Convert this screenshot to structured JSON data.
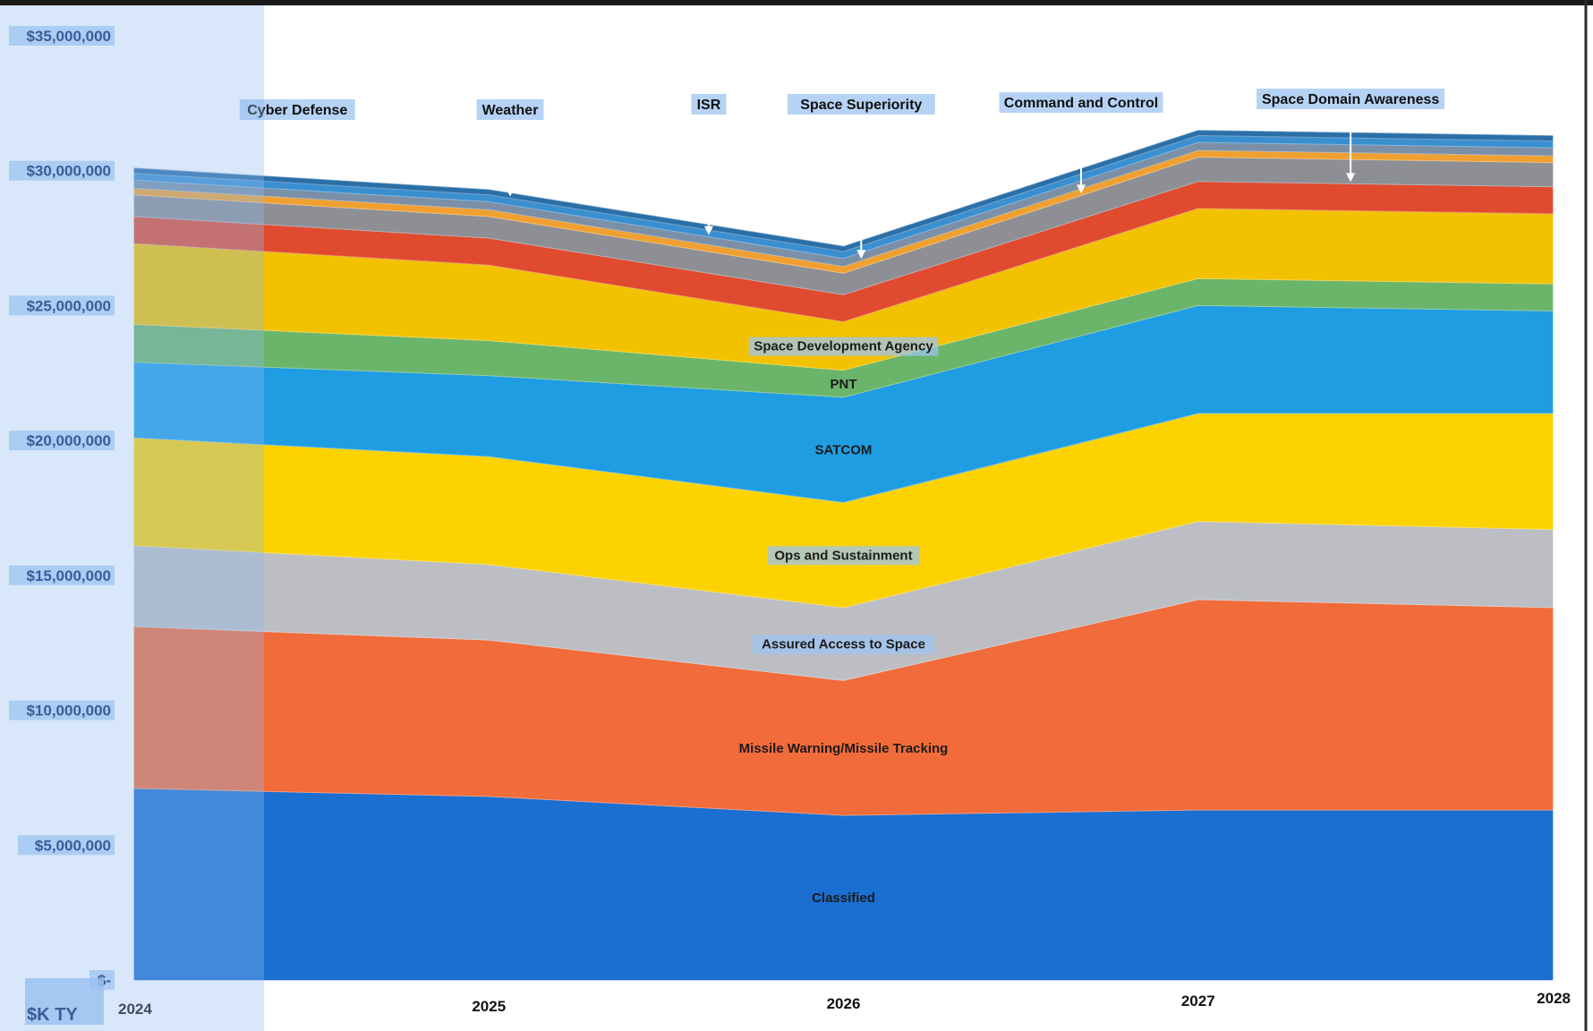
{
  "chart_data": {
    "type": "area",
    "stacked": true,
    "title": "",
    "xlabel": "",
    "ylabel": "$K TY",
    "x": [
      "2024",
      "2025",
      "2026",
      "2027",
      "2028"
    ],
    "ylim": [
      0,
      35000000
    ],
    "y_ticks": [
      {
        "value": 0,
        "label": "$-"
      },
      {
        "value": 5000000,
        "label": "$5,000,000"
      },
      {
        "value": 10000000,
        "label": "$10,000,000"
      },
      {
        "value": 15000000,
        "label": "$15,000,000"
      },
      {
        "value": 20000000,
        "label": "$20,000,000"
      },
      {
        "value": 25000000,
        "label": "$25,000,000"
      },
      {
        "value": 30000000,
        "label": "$30,000,000"
      },
      {
        "value": 35000000,
        "label": "$35,000,000"
      }
    ],
    "grid": false,
    "series": [
      {
        "name": "Classified",
        "color": "#1b6fd1",
        "values": [
          7100000,
          6800000,
          6100000,
          6300000,
          6300000
        ]
      },
      {
        "name": "Missile Warning/Missile Tracking",
        "color": "#f26b3a",
        "values": [
          6000000,
          5800000,
          5000000,
          7800000,
          7500000
        ]
      },
      {
        "name": "Assured Access to Space",
        "color": "#bcbec4",
        "values": [
          3000000,
          2800000,
          2700000,
          2900000,
          2900000
        ]
      },
      {
        "name": "Ops and Sustainment",
        "color": "#fcd200",
        "values": [
          4000000,
          4000000,
          3900000,
          4000000,
          4300000
        ]
      },
      {
        "name": "SATCOM",
        "color": "#1e9de3",
        "values": [
          2800000,
          3000000,
          3900000,
          4000000,
          3800000
        ]
      },
      {
        "name": "PNT",
        "color": "#6ab56a",
        "values": [
          1400000,
          1300000,
          1000000,
          1000000,
          1000000
        ]
      },
      {
        "name": "Space Development Agency",
        "color": "#f2c200",
        "values": [
          3000000,
          2800000,
          1800000,
          2600000,
          2600000
        ]
      },
      {
        "name": "Space Domain Awareness",
        "color": "#e04a2f",
        "values": [
          1000000,
          1000000,
          1000000,
          1000000,
          1000000
        ]
      },
      {
        "name": "Command and Control",
        "color": "#8d8f95",
        "values": [
          800000,
          800000,
          800000,
          900000,
          900000
        ]
      },
      {
        "name": "Space Superiority",
        "color": "#f0a030",
        "values": [
          250000,
          250000,
          250000,
          250000,
          250000
        ]
      },
      {
        "name": "ISR",
        "color": "#7b8fa6",
        "values": [
          300000,
          300000,
          300000,
          300000,
          300000
        ]
      },
      {
        "name": "Weather",
        "color": "#3a8fd0",
        "values": [
          250000,
          250000,
          250000,
          250000,
          250000
        ]
      },
      {
        "name": "Cyber Defense",
        "color": "#2a6fa8",
        "values": [
          200000,
          200000,
          200000,
          200000,
          200000
        ]
      }
    ],
    "inline_labels": [
      {
        "series": "Space Development Agency",
        "text": "Space Development Agency",
        "x": "2026",
        "highlight": true
      },
      {
        "series": "PNT",
        "text": "PNT",
        "x": "2026",
        "highlight": false
      },
      {
        "series": "SATCOM",
        "text": "SATCOM",
        "x": "2026",
        "highlight": false
      },
      {
        "series": "Ops and Sustainment",
        "text": "Ops and Sustainment",
        "x": "2026",
        "highlight": true
      },
      {
        "series": "Assured Access to Space",
        "text": "Assured Access to Space",
        "x": "2026",
        "highlight": true
      },
      {
        "series": "Missile Warning/Missile Tracking",
        "text": "Missile Warning/Missile Tracking",
        "x": "2026",
        "highlight": false
      },
      {
        "series": "Classified",
        "text": "Classified",
        "x": "2026",
        "highlight": false
      }
    ],
    "callouts": [
      {
        "text": "Cyber Defense",
        "target_series": "Cyber Defense",
        "x_data": 2024.46
      },
      {
        "text": "Weather",
        "target_series": "Weather",
        "x_data": 2025.06
      },
      {
        "text": "ISR",
        "target_series": "ISR",
        "x_data": 2025.62
      },
      {
        "text": "Space Superiority",
        "target_series": "Space Superiority",
        "x_data": 2026.05
      },
      {
        "text": "Command and Control",
        "target_series": "Command and Control",
        "x_data": 2026.67
      },
      {
        "text": "Space Domain Awareness",
        "target_series": "Space Domain Awareness",
        "x_data": 2027.43
      }
    ]
  },
  "colors": {
    "highlight": "#9ec4f2",
    "left_overlay": "#8fb9ee",
    "tick_color": "#10286b"
  }
}
